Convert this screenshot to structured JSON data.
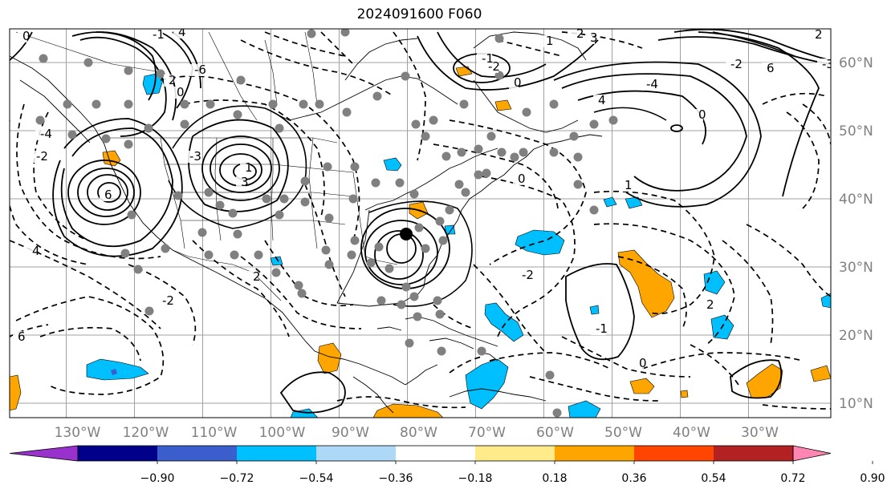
{
  "title": "2024091600 F060",
  "lon_ticks": [
    "130°W",
    "120°W",
    "110°W",
    "100°W",
    "90°W",
    "80°W",
    "70°W",
    "60°W",
    "50°W",
    "40°W",
    "30°W"
  ],
  "lat_ticks": [
    "60°N",
    "50°N",
    "40°N",
    "30°N",
    "20°N",
    "10°N"
  ],
  "colorbar": {
    "colors": [
      "#9932cc",
      "#00008b",
      "#3a5fcd",
      "#00bfff",
      "#add8f6",
      "#ffffff",
      "#ffeb8a",
      "#ffa500",
      "#ff4500",
      "#b22222",
      "#ff85b3"
    ],
    "tick_labels": [
      "−0.90",
      "−0.72",
      "−0.54",
      "−0.36",
      "−0.18",
      "0.18",
      "0.36",
      "0.54",
      "0.72",
      "0.90"
    ]
  },
  "contour_labels": [
    "0",
    "-2",
    "-4",
    "2",
    "4",
    "6",
    "-6",
    "-1",
    "1",
    "3",
    "-3",
    "0",
    "2",
    "-2",
    "4",
    "6",
    "-2",
    "0",
    "-1",
    "1",
    "2",
    "3",
    "4",
    "-4",
    "0",
    "-2",
    "6",
    "2",
    "-3",
    "1",
    "0",
    "-2",
    "-1",
    "0",
    "2"
  ],
  "colors": {
    "axes_grid": "#a0a0a0",
    "tick_label": "#808080",
    "marker": "#808080"
  }
}
